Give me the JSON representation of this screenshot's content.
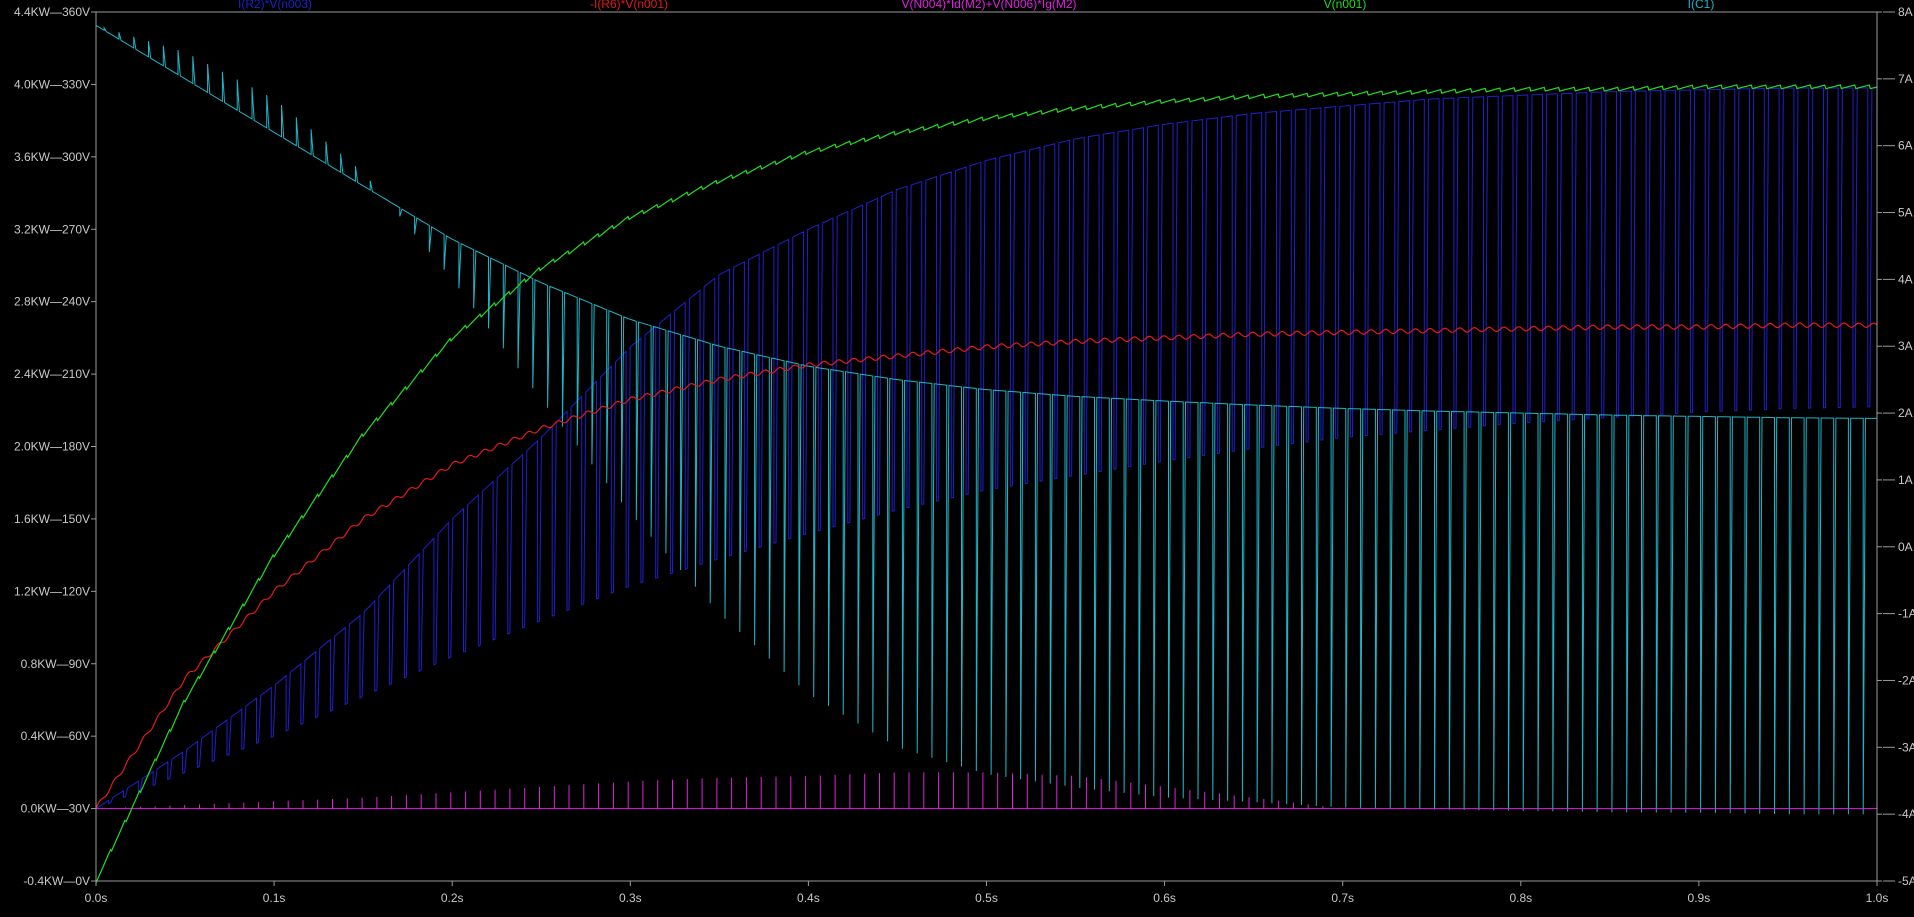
{
  "chart_data": {
    "type": "line",
    "trace_labels": [
      {
        "text": "I(R2)*V(n003)",
        "color": "#1f1fcc"
      },
      {
        "text": "-I(R6)*V(n001)",
        "color": "#e01b1b"
      },
      {
        "text": "V(N004)*Id(M2)+V(N006)*Ig(M2)",
        "color": "#e020e0"
      },
      {
        "text": "V(n001)",
        "color": "#22dd22"
      },
      {
        "text": "I(C1)",
        "color": "#1fb4c8"
      }
    ],
    "x_axis": {
      "range": [
        0,
        1.0
      ],
      "ticks": [
        0.0,
        0.1,
        0.2,
        0.3,
        0.4,
        0.5,
        0.6,
        0.7,
        0.8,
        0.9,
        1.0
      ],
      "tick_labels": [
        "0.0s",
        "0.1s",
        "0.2s",
        "0.3s",
        "0.4s",
        "0.5s",
        "0.6s",
        "0.7s",
        "0.8s",
        "0.9s",
        "1.0s"
      ]
    },
    "left_axis_power": {
      "range": [
        -0.4,
        4.4
      ],
      "tick_labels": [
        "4.4KW",
        "4.0KW",
        "3.6KW",
        "3.2KW",
        "2.8KW",
        "2.4KW",
        "2.0KW",
        "1.6KW",
        "1.2KW",
        "0.8KW",
        "0.4KW",
        "0.0KW",
        "-0.4KW"
      ]
    },
    "left_axis_voltage": {
      "range": [
        0,
        360
      ],
      "tick_labels": [
        "360V",
        "330V",
        "300V",
        "270V",
        "240V",
        "210V",
        "180V",
        "150V",
        "120V",
        "90V",
        "60V",
        "30V",
        "0V"
      ]
    },
    "right_axis_current": {
      "range": [
        -5,
        8
      ],
      "tick_labels": [
        "8A",
        "7A",
        "6A",
        "5A",
        "4A",
        "3A",
        "2A",
        "1A",
        "0A",
        "-1A",
        "-2A",
        "-3A",
        "-4A",
        "-5A"
      ]
    },
    "series": [
      {
        "name": "V(n001)",
        "axis": "voltage",
        "color": "#22dd22",
        "x": [
          0.0,
          0.05,
          0.1,
          0.15,
          0.2,
          0.25,
          0.3,
          0.35,
          0.4,
          0.45,
          0.5,
          0.55,
          0.6,
          0.65,
          0.7,
          0.75,
          0.8,
          0.85,
          0.9,
          0.95,
          1.0
        ],
        "values": [
          0,
          75,
          135,
          185,
          225,
          254,
          275,
          290,
          302,
          310,
          316,
          320,
          323,
          325,
          326,
          327,
          328,
          328,
          329,
          329,
          329
        ]
      },
      {
        "name": "-I(R6)*V(n001)",
        "axis": "power",
        "color": "#e01b1b",
        "x": [
          0.0,
          0.05,
          0.1,
          0.15,
          0.2,
          0.25,
          0.3,
          0.35,
          0.4,
          0.45,
          0.5,
          0.55,
          0.6,
          0.65,
          0.7,
          0.75,
          0.8,
          0.85,
          0.9,
          0.95,
          1.0
        ],
        "values": [
          0.0,
          0.72,
          1.2,
          1.6,
          1.9,
          2.1,
          2.26,
          2.37,
          2.45,
          2.5,
          2.55,
          2.58,
          2.6,
          2.62,
          2.63,
          2.64,
          2.65,
          2.66,
          2.66,
          2.67,
          2.67
        ]
      },
      {
        "name": "I(R2)*V(n003) (low)",
        "axis": "power",
        "color": "#1f1fcc",
        "x": [
          0.0,
          0.05,
          0.1,
          0.15,
          0.2,
          0.25,
          0.3,
          0.35,
          0.4,
          0.45,
          0.5,
          0.55,
          0.6,
          0.65,
          0.7,
          0.75,
          0.8,
          0.85,
          0.9,
          0.95,
          1.0
        ],
        "values": [
          0.0,
          0.2,
          0.4,
          0.62,
          0.84,
          1.04,
          1.23,
          1.38,
          1.52,
          1.65,
          1.76,
          1.84,
          1.92,
          1.99,
          2.05,
          2.09,
          2.13,
          2.16,
          2.19,
          2.21,
          2.22
        ]
      },
      {
        "name": "I(R2)*V(n003) (high)",
        "axis": "power",
        "color": "#1f1fcc",
        "x": [
          0.0,
          0.05,
          0.1,
          0.15,
          0.2,
          0.25,
          0.3,
          0.35,
          0.4,
          0.45,
          0.5,
          0.55,
          0.6,
          0.65,
          0.7,
          0.75,
          0.8,
          0.85,
          0.9,
          0.95,
          1.0
        ],
        "values": [
          0.0,
          0.32,
          0.68,
          1.08,
          1.6,
          2.05,
          2.55,
          2.95,
          3.2,
          3.42,
          3.58,
          3.7,
          3.78,
          3.84,
          3.88,
          3.92,
          3.94,
          3.96,
          3.97,
          3.98,
          3.98
        ]
      },
      {
        "name": "I(C1) (top)",
        "axis": "current",
        "color": "#1fb4c8",
        "x": [
          0.0,
          0.05,
          0.1,
          0.15,
          0.2,
          0.25,
          0.3,
          0.35,
          0.4,
          0.45,
          0.5,
          0.55,
          0.6,
          0.65,
          0.7,
          0.75,
          0.8,
          0.85,
          0.9,
          0.95,
          1.0
        ],
        "values": [
          7.8,
          7.0,
          6.2,
          5.4,
          4.6,
          3.95,
          3.4,
          3.0,
          2.7,
          2.5,
          2.35,
          2.25,
          2.18,
          2.12,
          2.07,
          2.03,
          2.0,
          1.97,
          1.95,
          1.93,
          1.92
        ]
      },
      {
        "name": "I(C1) (bottom)",
        "axis": "current",
        "color": "#1fb4c8",
        "x": [
          0.0,
          0.05,
          0.1,
          0.15,
          0.2,
          0.25,
          0.3,
          0.35,
          0.4,
          0.45,
          0.5,
          0.55,
          0.6,
          0.65,
          0.7,
          0.75,
          0.8,
          0.85,
          0.9,
          0.95,
          1.0
        ],
        "values": [
          7.8,
          7.4,
          6.7,
          5.6,
          4.0,
          2.2,
          0.5,
          -1.0,
          -2.2,
          -3.0,
          -3.4,
          -3.6,
          -3.75,
          -3.82,
          -3.9,
          -3.93,
          -3.95,
          -3.97,
          -3.98,
          -4.0,
          -4.0
        ]
      },
      {
        "name": "V(N004)*Id(M2)+V(N006)*Ig(M2) (peaks)",
        "axis": "power",
        "color": "#e020e0",
        "x": [
          0.0,
          0.05,
          0.1,
          0.15,
          0.2,
          0.25,
          0.3,
          0.35,
          0.4,
          0.45,
          0.5,
          0.55,
          0.6,
          0.65,
          0.7,
          0.75,
          0.8,
          0.85,
          0.9,
          0.95,
          1.0
        ],
        "values": [
          0.0,
          0.02,
          0.04,
          0.06,
          0.09,
          0.12,
          0.15,
          0.17,
          0.18,
          0.2,
          0.2,
          0.18,
          0.12,
          0.06,
          0.0,
          0.0,
          0.0,
          0.0,
          0.0,
          0.0,
          0.0
        ]
      }
    ],
    "switching_period_s": 0.0083,
    "grid": false,
    "legend": "top"
  }
}
